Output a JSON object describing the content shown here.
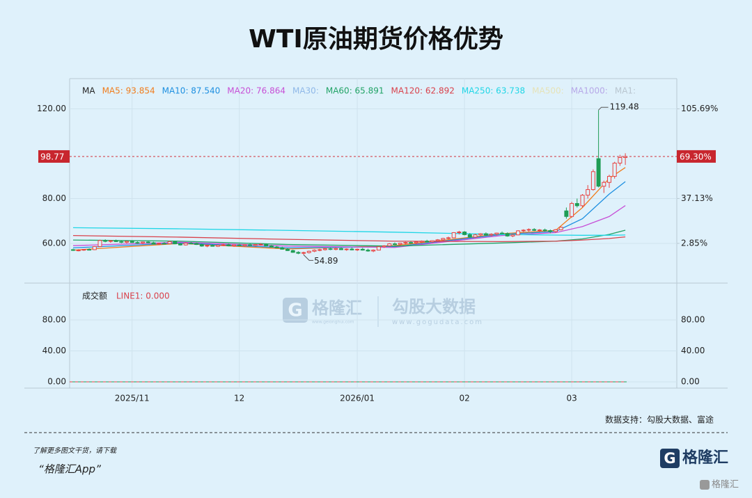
{
  "header": {
    "title": "WTI原油期货价格优势"
  },
  "chart_data": {
    "type": "candlestick",
    "up_color": "#e8413f",
    "down_color": "#1f9d55",
    "categories": [
      null,
      null,
      null,
      null,
      null,
      null,
      null,
      null,
      null,
      null,
      null,
      "2025/11",
      null,
      null,
      null,
      null,
      null,
      null,
      null,
      null,
      null,
      null,
      null,
      null,
      null,
      null,
      null,
      null,
      null,
      null,
      null,
      "12",
      null,
      null,
      null,
      null,
      null,
      null,
      null,
      null,
      null,
      null,
      null,
      null,
      null,
      null,
      null,
      null,
      null,
      null,
      null,
      null,
      null,
      "2026/01",
      null,
      null,
      null,
      null,
      null,
      null,
      null,
      null,
      null,
      null,
      null,
      null,
      null,
      null,
      null,
      null,
      null,
      null,
      null,
      "02",
      null,
      null,
      null,
      null,
      null,
      null,
      null,
      null,
      null,
      null,
      null,
      null,
      null,
      null,
      null,
      null,
      null,
      null,
      null,
      "03",
      null,
      null,
      null,
      null,
      null,
      null,
      null,
      null,
      null,
      null
    ],
    "ohlc": [
      [
        57.2,
        57.6,
        56.6,
        56.9
      ],
      [
        56.9,
        57.4,
        56.5,
        57.0
      ],
      [
        57.0,
        57.5,
        56.7,
        57.3
      ],
      [
        57.3,
        57.8,
        56.9,
        57.1
      ],
      [
        57.2,
        58.8,
        57.0,
        58.6
      ],
      [
        58.6,
        61.6,
        58.4,
        61.3
      ],
      [
        61.3,
        61.8,
        60.5,
        60.9
      ],
      [
        60.9,
        61.5,
        60.3,
        61.2
      ],
      [
        61.2,
        61.7,
        60.6,
        60.8
      ],
      [
        60.8,
        61.3,
        60.1,
        60.5
      ],
      [
        60.5,
        61.2,
        60.0,
        60.9
      ],
      [
        60.9,
        61.4,
        60.2,
        60.4
      ],
      [
        60.4,
        60.9,
        59.8,
        60.2
      ],
      [
        60.2,
        60.8,
        59.7,
        60.6
      ],
      [
        60.6,
        61.1,
        60.0,
        60.3
      ],
      [
        60.3,
        60.7,
        59.5,
        59.7
      ],
      [
        59.7,
        60.3,
        59.2,
        60.0
      ],
      [
        60.0,
        60.6,
        59.5,
        59.9
      ],
      [
        59.9,
        61.2,
        59.7,
        60.8
      ],
      [
        60.8,
        61.0,
        59.6,
        59.8
      ],
      [
        59.8,
        60.2,
        59.0,
        59.3
      ],
      [
        59.3,
        60.4,
        59.1,
        60.1
      ],
      [
        60.1,
        60.6,
        59.6,
        60.0
      ],
      [
        60.0,
        60.4,
        59.3,
        59.5
      ],
      [
        59.5,
        59.9,
        58.5,
        58.8
      ],
      [
        58.8,
        59.4,
        58.3,
        59.1
      ],
      [
        59.1,
        59.6,
        58.6,
        58.7
      ],
      [
        58.7,
        59.4,
        58.4,
        59.2
      ],
      [
        59.2,
        59.8,
        58.8,
        59.4
      ],
      [
        59.4,
        59.9,
        58.7,
        58.9
      ],
      [
        58.9,
        59.5,
        58.5,
        59.3
      ],
      [
        59.3,
        59.8,
        58.8,
        59.0
      ],
      [
        59.0,
        59.6,
        58.6,
        59.4
      ],
      [
        59.4,
        60.0,
        58.9,
        59.1
      ],
      [
        59.1,
        59.7,
        58.6,
        59.5
      ],
      [
        59.5,
        60.1,
        59.0,
        59.6
      ],
      [
        59.6,
        60.0,
        58.8,
        58.9
      ],
      [
        58.9,
        59.3,
        58.2,
        58.4
      ],
      [
        58.4,
        58.9,
        57.8,
        58.0
      ],
      [
        58.0,
        58.5,
        57.2,
        57.4
      ],
      [
        57.4,
        57.9,
        56.6,
        56.8
      ],
      [
        56.8,
        57.2,
        55.8,
        56.0
      ],
      [
        56.0,
        56.5,
        55.2,
        55.6
      ],
      [
        55.6,
        56.3,
        54.89,
        55.9
      ],
      [
        55.9,
        56.8,
        55.5,
        56.5
      ],
      [
        56.5,
        57.3,
        56.1,
        57.0
      ],
      [
        57.0,
        57.6,
        56.5,
        57.2
      ],
      [
        57.2,
        57.9,
        56.8,
        57.6
      ],
      [
        57.6,
        58.1,
        57.0,
        57.3
      ],
      [
        57.3,
        58.0,
        56.9,
        57.7
      ],
      [
        57.7,
        58.2,
        57.0,
        57.2
      ],
      [
        57.2,
        57.8,
        56.7,
        57.5
      ],
      [
        57.5,
        58.1,
        56.9,
        57.1
      ],
      [
        57.1,
        57.7,
        56.6,
        57.4
      ],
      [
        57.4,
        58.0,
        56.8,
        57.0
      ],
      [
        57.0,
        57.6,
        56.3,
        56.6
      ],
      [
        56.6,
        57.3,
        56.1,
        57.0
      ],
      [
        57.0,
        58.8,
        56.9,
        58.5
      ],
      [
        58.5,
        59.2,
        58.0,
        58.9
      ],
      [
        58.9,
        60.1,
        58.6,
        59.8
      ],
      [
        59.8,
        60.4,
        59.2,
        59.6
      ],
      [
        59.6,
        60.3,
        59.0,
        60.1
      ],
      [
        60.1,
        60.7,
        59.6,
        60.4
      ],
      [
        60.4,
        61.0,
        59.8,
        60.2
      ],
      [
        60.2,
        60.8,
        59.6,
        60.6
      ],
      [
        60.6,
        61.3,
        60.1,
        61.0
      ],
      [
        61.0,
        61.6,
        60.4,
        60.7
      ],
      [
        60.7,
        61.4,
        60.2,
        61.2
      ],
      [
        61.2,
        61.9,
        60.7,
        61.6
      ],
      [
        61.6,
        62.5,
        61.1,
        62.2
      ],
      [
        62.2,
        63.0,
        61.7,
        62.5
      ],
      [
        62.5,
        65.0,
        62.3,
        64.8
      ],
      [
        64.8,
        65.6,
        64.0,
        65.1
      ],
      [
        65.1,
        65.5,
        63.6,
        63.9
      ],
      [
        63.9,
        64.6,
        62.5,
        62.8
      ],
      [
        62.8,
        64.2,
        62.4,
        63.8
      ],
      [
        63.8,
        64.6,
        63.2,
        64.3
      ],
      [
        64.3,
        64.9,
        63.4,
        63.7
      ],
      [
        63.7,
        64.5,
        63.2,
        64.1
      ],
      [
        64.1,
        64.8,
        63.5,
        64.6
      ],
      [
        64.6,
        65.3,
        64.0,
        64.4
      ],
      [
        64.4,
        64.9,
        63.0,
        63.3
      ],
      [
        63.3,
        64.1,
        62.8,
        63.8
      ],
      [
        63.8,
        65.9,
        63.6,
        65.6
      ],
      [
        65.6,
        66.3,
        65.0,
        65.9
      ],
      [
        65.9,
        66.7,
        65.3,
        66.2
      ],
      [
        66.2,
        66.8,
        65.5,
        65.8
      ],
      [
        65.8,
        66.4,
        65.1,
        66.0
      ],
      [
        66.0,
        66.6,
        65.3,
        65.7
      ],
      [
        65.7,
        66.2,
        64.5,
        65.3
      ],
      [
        65.3,
        66.4,
        64.8,
        66.1
      ],
      [
        66.1,
        67.5,
        65.8,
        67.2
      ],
      [
        74.5,
        76.0,
        71.0,
        72.0
      ],
      [
        72.0,
        78.5,
        71.5,
        77.8
      ],
      [
        77.8,
        80.0,
        76.0,
        76.8
      ],
      [
        76.8,
        82.0,
        76.0,
        81.5
      ],
      [
        81.5,
        86.0,
        80.0,
        84.0
      ],
      [
        84.0,
        93.0,
        83.5,
        92.0
      ],
      [
        97.8,
        119.48,
        85.0,
        85.5
      ],
      [
        85.5,
        88.0,
        82.5,
        87.2
      ],
      [
        87.2,
        90.6,
        84.8,
        89.9
      ],
      [
        89.9,
        96.4,
        88.9,
        95.8
      ],
      [
        95.8,
        99.5,
        94.6,
        98.3
      ],
      [
        98.3,
        100.2,
        95.0,
        98.77
      ]
    ],
    "ylim": [
      42.3,
      133.5
    ],
    "yticks": [
      {
        "value": 60,
        "label": "60.00"
      },
      {
        "value": 80,
        "label": "80.00"
      },
      {
        "value": 120,
        "label": "120.00"
      }
    ],
    "y2lim": [
      -27.5,
      128.8
    ],
    "y2ticks": [
      {
        "value": 2.85,
        "label": "2.85%"
      },
      {
        "value": 37.13,
        "label": "37.13%"
      },
      {
        "value": 105.69,
        "label": "105.69%"
      }
    ],
    "last_change": {
      "value": 69.3,
      "label": "69.30%"
    },
    "legend_title": "MA",
    "series": [
      {
        "name": "MA5: 93.854",
        "color": "#f07c1c",
        "x": [
          0,
          20,
          40,
          60,
          80,
          90,
          95,
          100,
          103
        ],
        "values": [
          57,
          60,
          57.5,
          59,
          64.3,
          65.8,
          76,
          89,
          93.854
        ]
      },
      {
        "name": "MA10: 87.540",
        "color": "#1d8fe0",
        "x": [
          0,
          20,
          40,
          60,
          80,
          90,
          95,
          100,
          103
        ],
        "values": [
          58,
          60.2,
          58,
          58.5,
          64,
          65.3,
          71,
          82,
          87.54
        ]
      },
      {
        "name": "MA20: 76.864",
        "color": "#c74fd6",
        "x": [
          0,
          20,
          40,
          60,
          80,
          90,
          95,
          100,
          103
        ],
        "values": [
          59,
          60.5,
          58.8,
          58.2,
          63.5,
          64.8,
          67.5,
          72,
          76.864
        ]
      },
      {
        "name": "MA30:",
        "color": "#8fb8e8",
        "x": [],
        "values": []
      },
      {
        "name": "MA60: 65.891",
        "color": "#21a366",
        "x": [
          0,
          20,
          40,
          60,
          80,
          90,
          95,
          100,
          103
        ],
        "values": [
          61.5,
          61,
          59.5,
          58.8,
          60.2,
          61,
          62,
          64,
          65.891
        ]
      },
      {
        "name": "MA120: 62.892",
        "color": "#d9414b",
        "x": [
          0,
          20,
          40,
          60,
          80,
          90,
          95,
          100,
          103
        ],
        "values": [
          63.5,
          62.8,
          61.8,
          61,
          60.8,
          61,
          61.5,
          62.2,
          62.892
        ]
      },
      {
        "name": "MA250: 63.738",
        "color": "#1fd6e6",
        "x": [
          0,
          20,
          40,
          60,
          80,
          90,
          95,
          100,
          103
        ],
        "values": [
          67,
          66.5,
          65.8,
          65,
          64,
          63.7,
          63.6,
          63.65,
          63.738
        ]
      },
      {
        "name": "MA500:",
        "color": "#e6e3b8",
        "x": [],
        "values": []
      },
      {
        "name": "MA1000:",
        "color": "#b7a8e8",
        "x": [],
        "values": []
      },
      {
        "name": "MA1:",
        "color": "#b9c6d0",
        "x": [],
        "values": []
      }
    ],
    "volume": {
      "title": "成交额",
      "legend": "LINE1: 0.000",
      "line_value": 0,
      "ylim": [
        -8.1,
        117.8
      ],
      "yticks": [
        {
          "value": 0,
          "label": "0.00"
        },
        {
          "value": 40,
          "label": "40.00"
        },
        {
          "value": 80,
          "label": "80.00"
        }
      ]
    },
    "source": "数据支持：勾股大数据、富途"
  },
  "watermark": {
    "brand": "格隆汇",
    "brand_url": "www.gelonghui.com",
    "data_brand": "勾股大数据",
    "data_url": "www.gogudata.com"
  },
  "footer": {
    "line1": "了解更多图文干货，请下载",
    "line2": "“格隆汇App”",
    "logo": "格隆汇",
    "corner": "格隆汇"
  }
}
